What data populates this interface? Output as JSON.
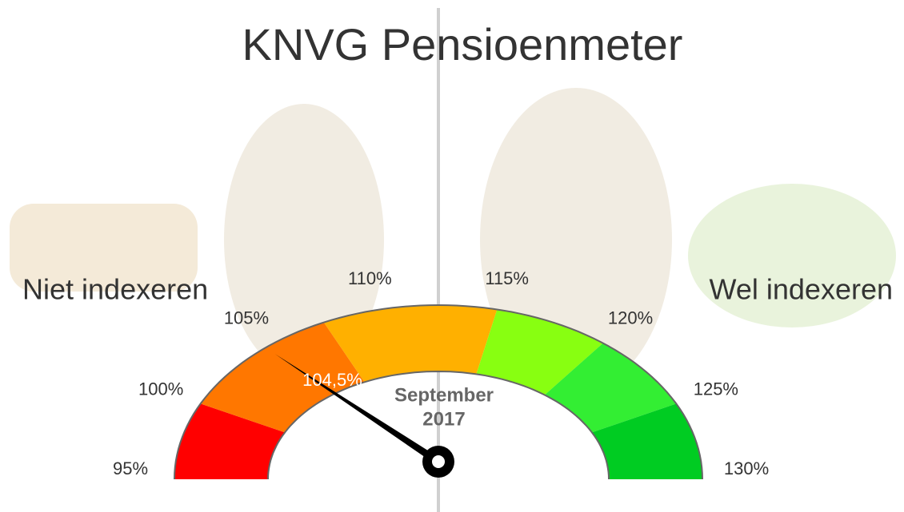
{
  "chart_data": {
    "type": "gauge",
    "title": "KNVG Pensioenmeter",
    "left_label": "Niet indexeren",
    "right_label": "Wel indexeren",
    "center_text": [
      "September",
      "2017"
    ],
    "value": 104.5,
    "value_label": "104,5%",
    "needle_color": "#000000",
    "gaugelim": [
      95,
      130
    ],
    "ticks": [
      {
        "value": 95,
        "label": "95%"
      },
      {
        "value": 100,
        "label": "100%"
      },
      {
        "value": 105,
        "label": "105%"
      },
      {
        "value": 110,
        "label": "110%"
      },
      {
        "value": 115,
        "label": "115%"
      },
      {
        "value": 120,
        "label": "120%"
      },
      {
        "value": 125,
        "label": "125%"
      },
      {
        "value": 130,
        "label": "130%"
      }
    ],
    "bands": [
      {
        "from": 95,
        "to": 100,
        "color": "#ff0000"
      },
      {
        "from": 100,
        "to": 107.5,
        "color": "#ff7700"
      },
      {
        "from": 107.5,
        "to": 115,
        "color": "#ffb000"
      },
      {
        "from": 115,
        "to": 120,
        "color": "#88ff11"
      },
      {
        "from": 120,
        "to": 125,
        "color": "#33ee33"
      },
      {
        "from": 125,
        "to": 130,
        "color": "#00cc22"
      }
    ]
  }
}
